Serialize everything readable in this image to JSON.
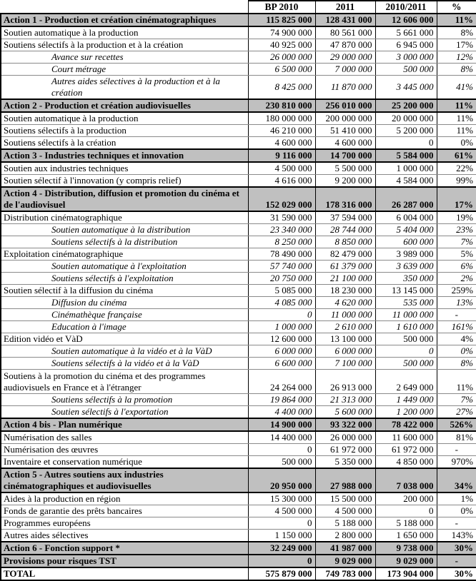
{
  "table": {
    "columns": [
      "",
      "BP 2010",
      "2011",
      "2010/2011",
      "%"
    ],
    "gray_row_color": "#c0c0c0",
    "rows": [
      {
        "type": "action",
        "label": "Action 1 - Production et création cinématographiques",
        "values": [
          "115 825 000",
          "128 431 000",
          "12 606 000",
          "11%"
        ]
      },
      {
        "type": "normal",
        "label": "Soutien automatique à la production",
        "values": [
          "74 900 000",
          "80 561 000",
          "5 661 000",
          "8%"
        ]
      },
      {
        "type": "normal",
        "label": "Soutiens sélectifs à la production et à la création",
        "values": [
          "40 925 000",
          "47 870 000",
          "6 945 000",
          "17%"
        ]
      },
      {
        "type": "sub",
        "label": "Avance sur recettes",
        "values": [
          "26 000 000",
          "29 000 000",
          "3 000 000",
          "12%"
        ]
      },
      {
        "type": "sub",
        "label": "Court métrage",
        "values": [
          "6 500 000",
          "7 000 000",
          "500 000",
          "8%"
        ]
      },
      {
        "type": "sub",
        "label": "Autres aides sélectives à la production et à la création",
        "values": [
          "8 425 000",
          "11 870 000",
          "3 445 000",
          "41%"
        ]
      },
      {
        "type": "action",
        "label": "Action 2 - Production et création audiovisuelles",
        "values": [
          "230 810 000",
          "256 010 000",
          "25 200 000",
          "11%"
        ]
      },
      {
        "type": "normal",
        "label": "Soutien automatique à la production",
        "values": [
          "180 000 000",
          "200 000 000",
          "20 000 000",
          "11%"
        ]
      },
      {
        "type": "normal",
        "label": "Soutiens sélectifs à la production",
        "values": [
          "46 210 000",
          "51 410 000",
          "5 200 000",
          "11%"
        ]
      },
      {
        "type": "normal",
        "label": "Soutiens sélectifs à la création",
        "values": [
          "4 600 000",
          "4 600 000",
          "0",
          "0%"
        ]
      },
      {
        "type": "action",
        "label": "Action 3 - Industries techniques et innovation",
        "values": [
          "9 116 000",
          "14 700 000",
          "5 584 000",
          "61%"
        ]
      },
      {
        "type": "normal",
        "label": "Soutien aux industries techniques",
        "values": [
          "4 500 000",
          "5 500 000",
          "1 000 000",
          "22%"
        ]
      },
      {
        "type": "normal",
        "label": "Soutien sélectif à l'innovation (y compris relief)",
        "values": [
          "4 616 000",
          "9 200 000",
          "4 584 000",
          "99%"
        ]
      },
      {
        "type": "action2",
        "label": "Action 4 - Distribution, diffusion et promotion du cinéma et de l'audiovisuel",
        "values": [
          "152 029 000",
          "178 316 000",
          "26 287 000",
          "17%"
        ]
      },
      {
        "type": "normal",
        "label": "Distribution cinématographique",
        "values": [
          "31 590 000",
          "37 594 000",
          "6 004 000",
          "19%"
        ]
      },
      {
        "type": "sub",
        "label": "Soutien automatique à la distribution",
        "values": [
          "23 340 000",
          "28 744 000",
          "5 404 000",
          "23%"
        ]
      },
      {
        "type": "sub",
        "label": "Soutiens sélectifs à la distribution",
        "values": [
          "8 250 000",
          "8 850 000",
          "600 000",
          "7%"
        ]
      },
      {
        "type": "normal",
        "label": "Exploitation cinématographique",
        "values": [
          "78 490 000",
          "82 479 000",
          "3 989 000",
          "5%"
        ]
      },
      {
        "type": "sub",
        "label": "Soutien automatique à l'exploitation",
        "values": [
          "57 740 000",
          "61 379 000",
          "3 639 000",
          "6%"
        ]
      },
      {
        "type": "sub",
        "label": "Soutiens sélectifs à l'exploitation",
        "values": [
          "20 750 000",
          "21 100 000",
          "350 000",
          "2%"
        ]
      },
      {
        "type": "normal",
        "label": "Soutien sélectif à la diffusion du cinéma",
        "values": [
          "5 085 000",
          "18 230 000",
          "13 145 000",
          "259%"
        ]
      },
      {
        "type": "sub",
        "label": "Diffusion du cinéma",
        "values": [
          "4 085 000",
          "4 620 000",
          "535 000",
          "13%"
        ]
      },
      {
        "type": "sub",
        "label": "Cinémathèque française",
        "values": [
          "0",
          "11 000 000",
          "11 000 000",
          "-"
        ]
      },
      {
        "type": "sub",
        "label": "Education à l'image",
        "values": [
          "1 000 000",
          "2 610 000",
          "1 610 000",
          "161%"
        ]
      },
      {
        "type": "normal",
        "label": "Edition vidéo et VàD",
        "values": [
          "12 600 000",
          "13 100 000",
          "500 000",
          "4%"
        ]
      },
      {
        "type": "sub",
        "label": "Soutien automatique à la vidéo et à la VàD",
        "values": [
          "6 000 000",
          "6 000 000",
          "0",
          "0%"
        ]
      },
      {
        "type": "sub",
        "label": "Soutiens sélectifs à la vidéo et à la VàD",
        "values": [
          "6 600 000",
          "7 100 000",
          "500 000",
          "8%"
        ]
      },
      {
        "type": "normal2",
        "label": "Soutiens à la promotion du cinéma et des programmes audiovisuels en France et à l'étranger",
        "values": [
          "24 264 000",
          "26 913 000",
          "2 649 000",
          "11%"
        ]
      },
      {
        "type": "sub",
        "label": "Soutiens sélectifs à la promotion",
        "values": [
          "19 864 000",
          "21 313 000",
          "1 449 000",
          "7%"
        ]
      },
      {
        "type": "sub",
        "label": "Soutien sélectifs à l'exportation",
        "values": [
          "4 400 000",
          "5 600 000",
          "1 200 000",
          "27%"
        ]
      },
      {
        "type": "action",
        "label": "Action 4 bis - Plan numérique",
        "values": [
          "14 900 000",
          "93 322 000",
          "78 422 000",
          "526%"
        ]
      },
      {
        "type": "normal",
        "label": "Numérisation des salles",
        "values": [
          "14 400 000",
          "26 000 000",
          "11 600 000",
          "81%"
        ]
      },
      {
        "type": "normal",
        "label": "Numérisation des œuvres",
        "values": [
          "0",
          "61 972 000",
          "61 972 000",
          "-"
        ]
      },
      {
        "type": "normal",
        "label": "Inventaire et conservation numérique",
        "values": [
          "500 000",
          "5 350 000",
          "4 850 000",
          "970%"
        ]
      },
      {
        "type": "action2",
        "label": "Action 5 - Autres soutiens aux industries cinématographiques et audiovisuelles",
        "values": [
          "20 950 000",
          "27 988 000",
          "7 038 000",
          "34%"
        ]
      },
      {
        "type": "normal",
        "label": "Aides à la production en région",
        "values": [
          "15 300 000",
          "15 500 000",
          "200 000",
          "1%"
        ]
      },
      {
        "type": "normal",
        "label": "Fonds de garantie des prêts bancaires",
        "values": [
          "4 500 000",
          "4 500 000",
          "0",
          "0%"
        ]
      },
      {
        "type": "normal",
        "label": "Programmes européens",
        "values": [
          "0",
          "5 188 000",
          "5 188 000",
          "-"
        ]
      },
      {
        "type": "normal",
        "label": "Autres aides sélectives",
        "values": [
          "1 150 000",
          "2 800 000",
          "1 650 000",
          "143%"
        ]
      },
      {
        "type": "action",
        "label": "Action 6 - Fonction support *",
        "values": [
          "32 249 000",
          "41 987 000",
          "9 738 000",
          "30%"
        ]
      },
      {
        "type": "action",
        "label": "Provisions pour risques TST",
        "values": [
          "0",
          "9 029 000",
          "9 029 000",
          "-"
        ]
      },
      {
        "type": "total",
        "label": "TOTAL",
        "values": [
          "575 879 000",
          "749 783 000",
          "173 904 000",
          "30%"
        ]
      }
    ]
  }
}
